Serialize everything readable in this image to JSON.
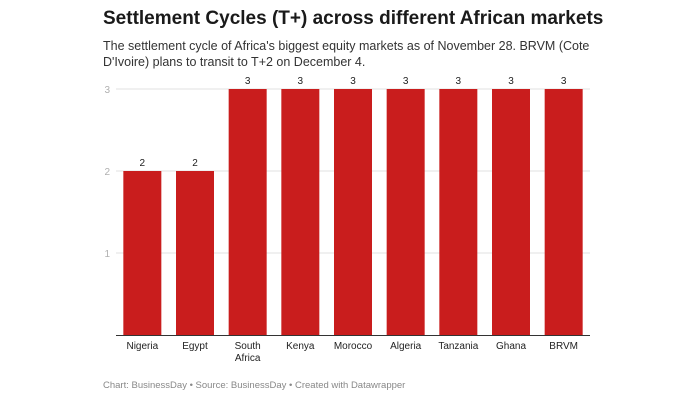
{
  "chart_data": {
    "type": "bar",
    "title": "Settlement Cycles (T+) across different African markets",
    "subtitle": "The settlement cycle of Africa's biggest equity markets as of November 28. BRVM (Cote D'Ivoire) plans to transit to T+2 on December 4.",
    "categories": [
      "Nigeria",
      "Egypt",
      "South Africa",
      "Kenya",
      "Morocco",
      "Algeria",
      "Tanzania",
      "Ghana",
      "BRVM"
    ],
    "category_lines": [
      [
        "Nigeria"
      ],
      [
        "Egypt"
      ],
      [
        "South",
        "Africa"
      ],
      [
        "Kenya"
      ],
      [
        "Morocco"
      ],
      [
        "Algeria"
      ],
      [
        "Tanzania"
      ],
      [
        "Ghana"
      ],
      [
        "BRVM"
      ]
    ],
    "values": [
      2,
      2,
      3,
      3,
      3,
      3,
      3,
      3,
      3
    ],
    "yticks": [
      1,
      2,
      3
    ],
    "ylim": [
      0,
      3
    ],
    "xlabel": "",
    "ylabel": "",
    "grid": true,
    "bar_color": "#c91d1d",
    "footer": "Chart: BusinessDay • Source: BusinessDay • Created with Datawrapper"
  }
}
